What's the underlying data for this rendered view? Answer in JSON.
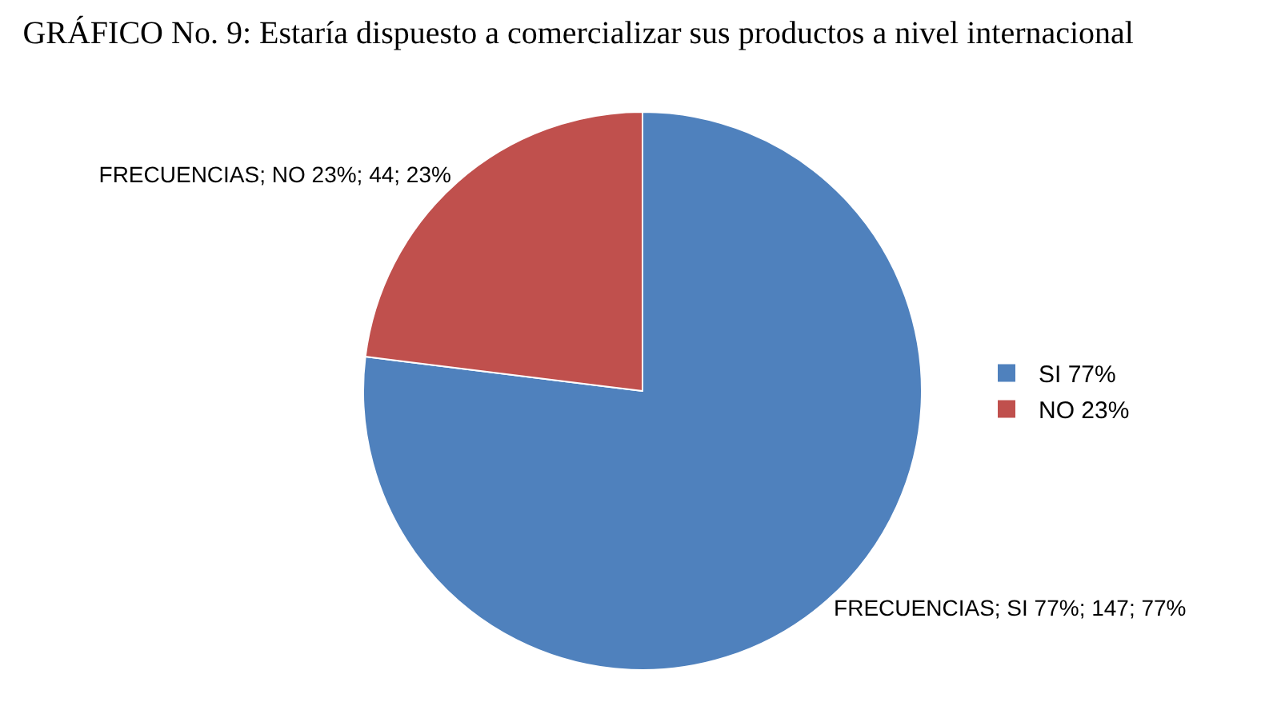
{
  "chart_data": {
    "type": "pie",
    "title": "GRÁFICO No. 9: Estaría dispuesto a comercializar sus productos a nivel internacional",
    "categories": [
      "SI 77%",
      "NO 23%"
    ],
    "values": [
      147,
      44
    ],
    "colors": [
      "#4f81bd",
      "#c0504d"
    ],
    "value_labels": [
      "FRECUENCIAS; SI 77%; 147; 77%",
      "FRECUENCIAS; NO 23%; 44; 23%"
    ],
    "legend": "right"
  }
}
